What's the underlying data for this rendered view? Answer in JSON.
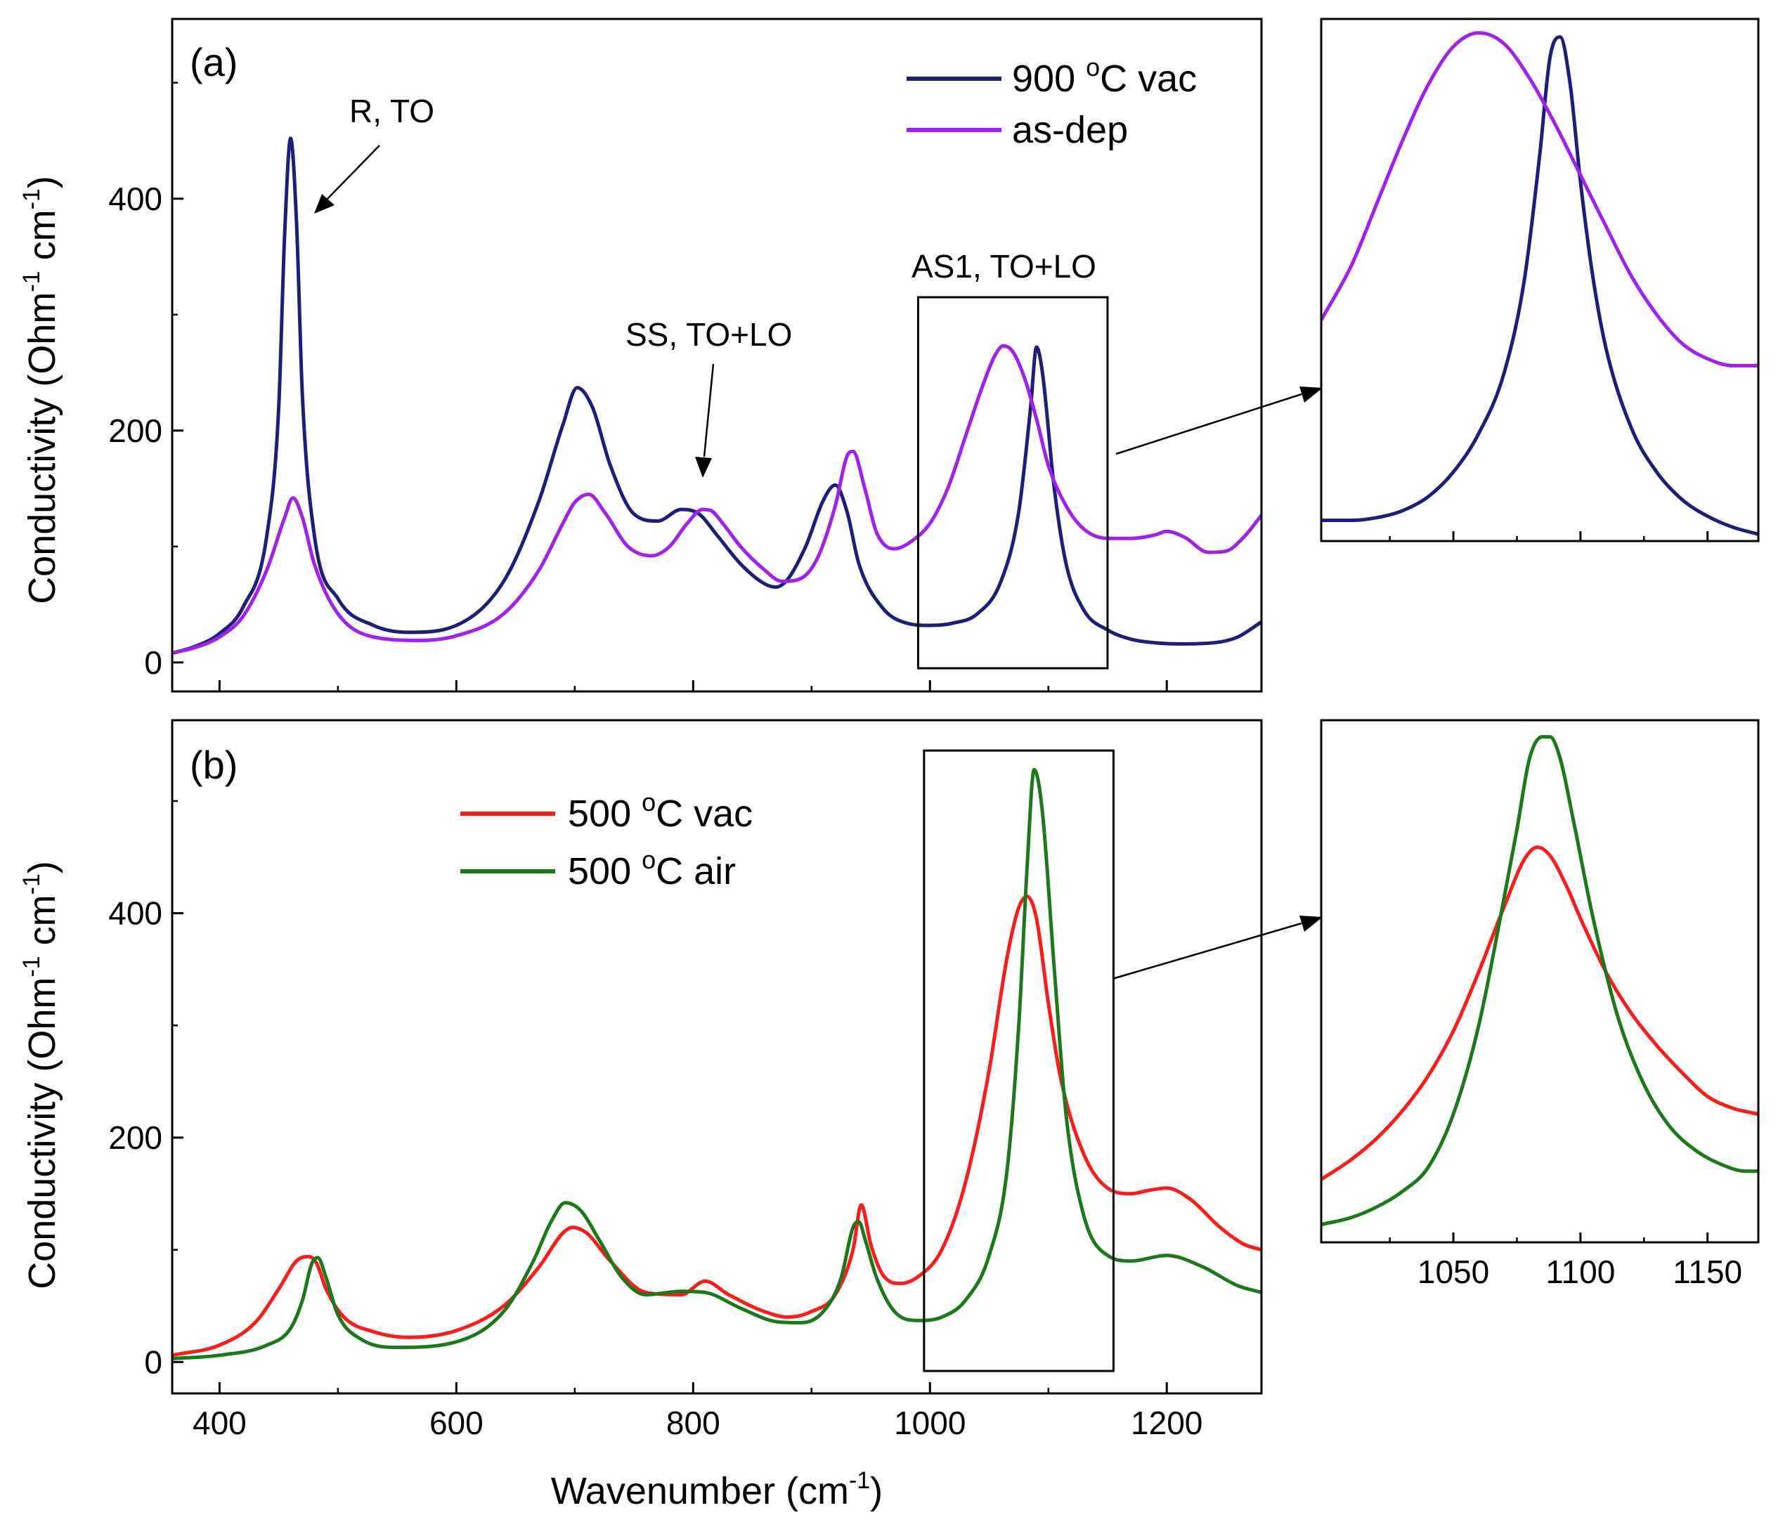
{
  "chart_data": [
    {
      "id": "a",
      "type": "line",
      "panel_label": "(a)",
      "xlabel": "",
      "ylabel_main": "Conductivity (Ohm",
      "ylabel_exp1": "-1",
      "ylabel_mid": " cm",
      "ylabel_exp2": "-1",
      "ylabel_end": ")",
      "xlim": [
        360,
        1280
      ],
      "ylim": [
        -25,
        555
      ],
      "x_ticks": [
        400,
        600,
        800,
        1000,
        1200
      ],
      "x_tick_labels": [
        "",
        "",
        "",
        "",
        ""
      ],
      "y_ticks": [
        0,
        200,
        400
      ],
      "y_tick_labels": [
        "0",
        "200",
        "400"
      ],
      "legend": [
        {
          "pre": "900 ",
          "sup": "o",
          "post": "C vac",
          "color": "#1b1f7a"
        },
        {
          "pre": "as-dep",
          "sup": "",
          "post": "",
          "color": "#a020f0"
        }
      ],
      "series": [
        {
          "name": "900 °C vac",
          "color": "#1b1f7a",
          "x": [
            360,
            380,
            400,
            420,
            440,
            450,
            455,
            460,
            465,
            470,
            480,
            500,
            530,
            560,
            600,
            640,
            670,
            690,
            702,
            715,
            730,
            750,
            770,
            790,
            805,
            820,
            840,
            860,
            870,
            880,
            895,
            910,
            920,
            930,
            940,
            960,
            980,
            1000,
            1020,
            1040,
            1060,
            1075,
            1085,
            1090,
            1095,
            1105,
            1115,
            1130,
            1150,
            1170,
            1190,
            1210,
            1240,
            1260,
            1280
          ],
          "values": [
            8,
            14,
            25,
            48,
            110,
            220,
            370,
            452,
            380,
            230,
            110,
            55,
            32,
            26,
            32,
            70,
            140,
            205,
            237,
            220,
            170,
            128,
            122,
            132,
            128,
            110,
            85,
            68,
            65,
            72,
            100,
            140,
            153,
            130,
            85,
            47,
            34,
            32,
            34,
            42,
            70,
            130,
            220,
            272,
            250,
            150,
            85,
            45,
            28,
            20,
            17,
            16,
            17,
            22,
            35
          ]
        },
        {
          "name": "as-dep",
          "color": "#a020f0",
          "x": [
            360,
            380,
            400,
            420,
            440,
            455,
            462,
            470,
            480,
            500,
            530,
            570,
            600,
            640,
            670,
            690,
            700,
            712,
            725,
            745,
            765,
            780,
            795,
            808,
            815,
            825,
            840,
            860,
            875,
            890,
            905,
            920,
            930,
            935,
            945,
            955,
            970,
            985,
            1000,
            1015,
            1030,
            1045,
            1055,
            1062,
            1070,
            1080,
            1090,
            1100,
            1115,
            1130,
            1150,
            1170,
            1190,
            1200,
            1215,
            1235,
            1250,
            1265,
            1280
          ],
          "values": [
            8,
            13,
            22,
            40,
            80,
            125,
            142,
            125,
            85,
            42,
            22,
            19,
            23,
            42,
            80,
            120,
            138,
            145,
            130,
            100,
            92,
            100,
            120,
            132,
            131,
            120,
            100,
            80,
            70,
            72,
            90,
            135,
            178,
            182,
            150,
            112,
            98,
            105,
            120,
            150,
            195,
            240,
            265,
            273,
            268,
            245,
            210,
            170,
            135,
            115,
            107,
            107,
            110,
            113,
            108,
            95,
            96,
            108,
            127
          ]
        }
      ],
      "annotations": [
        {
          "text": "R, TO",
          "arrow_to_x": 468,
          "arrow_to_y": 400
        },
        {
          "text": "SS, TO+LO",
          "arrow_to_x": 808,
          "arrow_to_y": 155
        },
        {
          "text": "AS1, TO+LO"
        }
      ],
      "zoom_box": {
        "x": [
          990,
          1150
        ],
        "y": [
          -5,
          315
        ]
      }
    },
    {
      "id": "a-inset",
      "type": "line",
      "xlim": [
        998,
        1170
      ],
      "ylim": [
        140,
        518
      ],
      "x_ticks": [
        1050,
        1100,
        1150
      ],
      "x_tick_labels": [
        "",
        "",
        ""
      ],
      "series": [
        {
          "name": "900 °C vac",
          "color": "#1b1f7a",
          "x": [
            998,
            1010,
            1020,
            1030,
            1040,
            1050,
            1060,
            1070,
            1078,
            1084,
            1088,
            1092,
            1096,
            1100,
            1105,
            1110,
            1120,
            1130,
            1140,
            1150,
            1160,
            1170
          ],
          "values": [
            155,
            155,
            157,
            162,
            172,
            190,
            218,
            262,
            330,
            420,
            490,
            505,
            470,
            400,
            330,
            280,
            222,
            190,
            170,
            158,
            150,
            145
          ]
        },
        {
          "name": "as-dep",
          "color": "#a020f0",
          "x": [
            998,
            1010,
            1020,
            1030,
            1040,
            1050,
            1060,
            1070,
            1080,
            1090,
            1100,
            1110,
            1120,
            1130,
            1140,
            1150,
            1160,
            1170
          ],
          "values": [
            300,
            340,
            385,
            430,
            470,
            498,
            508,
            500,
            475,
            442,
            405,
            368,
            332,
            304,
            283,
            272,
            267,
            267
          ]
        }
      ]
    },
    {
      "id": "b",
      "type": "line",
      "panel_label": "(b)",
      "xlabel": "Wavenumber (cm",
      "xlabel_exp": "-1",
      "xlabel_end": ")",
      "ylabel_main": "Conductivity (Ohm",
      "ylabel_exp1": "-1",
      "ylabel_mid": " cm",
      "ylabel_exp2": "-1",
      "ylabel_end": ")",
      "xlim": [
        360,
        1280
      ],
      "ylim": [
        -28,
        572
      ],
      "x_ticks": [
        400,
        600,
        800,
        1000,
        1200
      ],
      "x_tick_labels": [
        "400",
        "600",
        "800",
        "1000",
        "1200"
      ],
      "y_ticks": [
        0,
        200,
        400
      ],
      "y_tick_labels": [
        "0",
        "200",
        "400"
      ],
      "legend": [
        {
          "pre": "500 ",
          "sup": "o",
          "post": "C vac",
          "color": "#ff1a1a"
        },
        {
          "pre": "500 ",
          "sup": "o",
          "post": "C air",
          "color": "#1a7a1a"
        }
      ],
      "series": [
        {
          "name": "500 °C vac",
          "color": "#ff1a1a",
          "x": [
            360,
            400,
            430,
            450,
            465,
            475,
            482,
            490,
            505,
            530,
            560,
            600,
            640,
            670,
            690,
            698,
            710,
            730,
            760,
            790,
            810,
            830,
            860,
            880,
            900,
            920,
            935,
            942,
            950,
            960,
            975,
            990,
            1010,
            1030,
            1050,
            1065,
            1075,
            1082,
            1090,
            1100,
            1110,
            1130,
            1150,
            1170,
            1185,
            1200,
            1220,
            1245,
            1265,
            1280
          ],
          "values": [
            6,
            15,
            35,
            65,
            90,
            94,
            88,
            65,
            40,
            27,
            22,
            28,
            50,
            85,
            115,
            120,
            115,
            90,
            62,
            60,
            72,
            60,
            45,
            40,
            45,
            60,
            100,
            140,
            105,
            78,
            70,
            76,
            100,
            160,
            260,
            360,
            405,
            415,
            395,
            320,
            255,
            185,
            155,
            150,
            153,
            155,
            145,
            120,
            105,
            100
          ]
        },
        {
          "name": "500 °C air",
          "color": "#1a7a1a",
          "x": [
            360,
            400,
            440,
            460,
            470,
            478,
            483,
            490,
            500,
            520,
            550,
            600,
            640,
            665,
            680,
            692,
            705,
            720,
            740,
            760,
            790,
            810,
            840,
            870,
            890,
            910,
            925,
            935,
            940,
            945,
            955,
            970,
            990,
            1010,
            1030,
            1050,
            1065,
            1075,
            1082,
            1088,
            1095,
            1105,
            1115,
            1130,
            1150,
            1170,
            1200,
            1230,
            1260,
            1280
          ],
          "values": [
            3,
            6,
            15,
            30,
            55,
            88,
            93,
            75,
            42,
            20,
            13,
            18,
            45,
            90,
            125,
            142,
            135,
            110,
            75,
            60,
            63,
            62,
            48,
            36,
            35,
            45,
            75,
            120,
            125,
            110,
            75,
            45,
            37,
            40,
            55,
            95,
            170,
            300,
            440,
            528,
            490,
            350,
            220,
            130,
            95,
            90,
            95,
            85,
            68,
            62
          ]
        }
      ],
      "zoom_box": {
        "x": [
          995,
          1155
        ],
        "y": [
          -8,
          545
        ]
      }
    },
    {
      "id": "b-inset",
      "type": "line",
      "xlim": [
        998,
        1170
      ],
      "ylim": [
        122,
        562
      ],
      "x_ticks": [
        1050,
        1100,
        1150
      ],
      "x_tick_labels": [
        "1050",
        "1100",
        "1150"
      ],
      "series": [
        {
          "name": "500 °C vac",
          "color": "#ff1a1a",
          "x": [
            998,
            1010,
            1020,
            1030,
            1040,
            1050,
            1060,
            1070,
            1078,
            1083,
            1088,
            1095,
            1100,
            1110,
            1120,
            1130,
            1140,
            1150,
            1160,
            1170
          ],
          "values": [
            175,
            192,
            210,
            233,
            262,
            300,
            350,
            405,
            445,
            455,
            448,
            420,
            395,
            350,
            315,
            288,
            265,
            245,
            235,
            230
          ]
        },
        {
          "name": "500 °C air",
          "color": "#1a7a1a",
          "x": [
            998,
            1010,
            1020,
            1030,
            1040,
            1050,
            1060,
            1068,
            1075,
            1080,
            1085,
            1088,
            1092,
            1097,
            1105,
            1115,
            1125,
            1135,
            1145,
            1155,
            1165,
            1170
          ],
          "values": [
            137,
            143,
            152,
            165,
            185,
            230,
            305,
            390,
            470,
            530,
            548,
            548,
            530,
            480,
            395,
            310,
            255,
            220,
            200,
            188,
            182,
            182
          ]
        }
      ]
    }
  ]
}
